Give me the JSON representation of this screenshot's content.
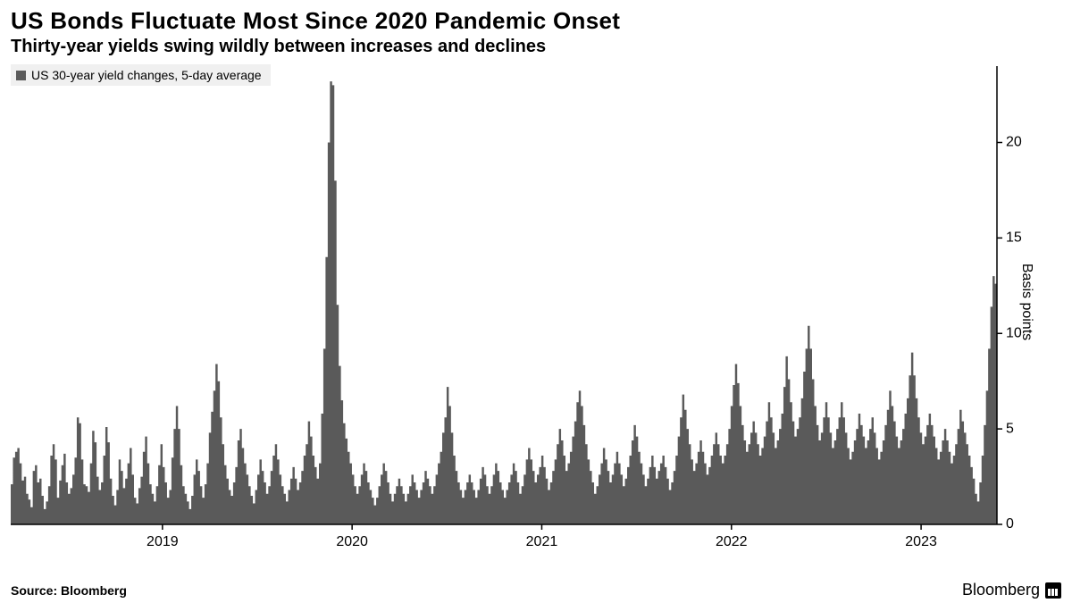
{
  "header": {
    "title": "US Bonds Fluctuate Most Since 2020 Pandemic Onset",
    "subtitle": "Thirty-year yields swing wildly between increases and declines"
  },
  "legend": {
    "swatch_color": "#5a5a5a",
    "label": "US 30-year yield changes, 5-day average"
  },
  "chart": {
    "type": "bar",
    "series_color": "#5a5a5a",
    "background_color": "#ffffff",
    "axis_color": "#000000",
    "tick_length": 6,
    "ylabel": "Basis points",
    "ylim": [
      0,
      24
    ],
    "yticks": [
      0,
      5,
      10,
      15,
      20
    ],
    "x_start_year": 2018.2,
    "x_end_year": 2023.4,
    "xticks": [
      2019,
      2020,
      2021,
      2022,
      2023
    ],
    "xtick_labels": [
      "2019",
      "2020",
      "2021",
      "2022",
      "2023"
    ],
    "values": [
      2.1,
      3.5,
      3.8,
      4.0,
      3.2,
      2.3,
      2.5,
      1.6,
      1.3,
      0.9,
      2.8,
      3.1,
      2.2,
      2.4,
      1.5,
      0.8,
      1.2,
      2.0,
      3.6,
      4.2,
      3.4,
      1.4,
      2.3,
      3.1,
      3.7,
      2.2,
      1.6,
      1.9,
      2.6,
      3.5,
      5.6,
      5.3,
      3.4,
      2.1,
      2.0,
      1.7,
      3.2,
      4.9,
      4.3,
      2.5,
      1.8,
      2.2,
      3.6,
      5.1,
      4.3,
      2.4,
      1.5,
      1.0,
      1.8,
      3.4,
      2.8,
      1.9,
      2.4,
      3.2,
      4.0,
      2.6,
      1.4,
      1.1,
      1.9,
      2.5,
      3.8,
      4.6,
      3.2,
      2.1,
      1.6,
      1.2,
      2.0,
      3.1,
      4.2,
      3.0,
      2.2,
      1.4,
      1.8,
      3.5,
      5.0,
      6.2,
      5.0,
      3.1,
      2.0,
      1.6,
      1.2,
      0.8,
      1.5,
      2.6,
      3.4,
      2.8,
      2.0,
      1.4,
      2.1,
      3.2,
      4.8,
      5.9,
      7.0,
      8.4,
      7.5,
      5.6,
      4.2,
      3.1,
      2.4,
      1.8,
      1.5,
      2.2,
      3.0,
      4.4,
      5.0,
      4.0,
      3.2,
      2.6,
      2.0,
      1.5,
      1.1,
      1.8,
      2.6,
      3.4,
      2.8,
      2.2,
      1.6,
      2.0,
      2.8,
      3.6,
      4.2,
      3.4,
      2.6,
      2.0,
      1.6,
      1.2,
      1.8,
      2.4,
      3.0,
      2.4,
      1.8,
      2.2,
      2.8,
      3.6,
      4.2,
      5.4,
      4.6,
      3.6,
      3.0,
      2.4,
      3.2,
      5.8,
      9.2,
      14.0,
      20.0,
      23.2,
      23.0,
      18.0,
      11.5,
      8.3,
      6.5,
      5.3,
      4.5,
      3.8,
      3.2,
      2.6,
      2.0,
      1.6,
      2.0,
      2.6,
      3.2,
      2.8,
      2.2,
      1.8,
      1.4,
      1.0,
      1.4,
      2.0,
      2.6,
      3.2,
      2.8,
      2.2,
      1.6,
      1.2,
      1.6,
      2.0,
      2.4,
      2.0,
      1.6,
      1.2,
      1.6,
      2.0,
      2.6,
      2.2,
      1.8,
      1.4,
      1.8,
      2.2,
      2.8,
      2.4,
      2.0,
      1.6,
      2.0,
      2.6,
      3.2,
      3.8,
      4.8,
      5.6,
      7.2,
      6.2,
      4.8,
      3.6,
      2.8,
      2.2,
      1.8,
      1.4,
      1.8,
      2.2,
      2.6,
      2.2,
      1.8,
      1.4,
      1.8,
      2.4,
      3.0,
      2.6,
      2.0,
      1.6,
      2.0,
      2.6,
      3.2,
      2.8,
      2.2,
      1.8,
      1.4,
      1.8,
      2.2,
      2.6,
      3.2,
      2.8,
      2.2,
      1.6,
      2.0,
      2.6,
      3.4,
      4.0,
      3.4,
      2.8,
      2.2,
      2.6,
      3.0,
      3.6,
      3.0,
      2.4,
      1.8,
      2.2,
      2.8,
      3.4,
      4.2,
      5.0,
      4.4,
      3.6,
      2.8,
      3.2,
      3.8,
      4.6,
      5.4,
      6.4,
      7.0,
      6.2,
      5.2,
      4.2,
      3.4,
      2.8,
      2.2,
      1.6,
      2.0,
      2.6,
      3.2,
      4.0,
      3.4,
      2.8,
      2.2,
      2.6,
      3.2,
      3.8,
      3.2,
      2.6,
      2.0,
      2.4,
      3.0,
      3.6,
      4.4,
      5.2,
      4.6,
      3.8,
      3.2,
      2.6,
      2.0,
      2.4,
      3.0,
      3.6,
      3.0,
      2.4,
      2.8,
      3.2,
      3.6,
      3.0,
      2.4,
      1.8,
      2.2,
      2.8,
      3.6,
      4.6,
      5.6,
      6.8,
      6.0,
      5.0,
      4.2,
      3.4,
      2.8,
      3.2,
      3.8,
      4.4,
      3.8,
      3.2,
      2.6,
      3.0,
      3.6,
      4.2,
      4.8,
      4.2,
      3.6,
      3.2,
      3.6,
      4.2,
      5.0,
      6.2,
      7.3,
      8.4,
      7.4,
      6.2,
      5.2,
      4.4,
      3.8,
      4.2,
      4.8,
      5.4,
      4.8,
      4.2,
      3.6,
      4.0,
      4.6,
      5.4,
      6.4,
      5.6,
      4.8,
      4.0,
      4.4,
      5.0,
      5.8,
      7.2,
      8.8,
      7.6,
      6.4,
      5.4,
      4.6,
      5.0,
      5.6,
      6.6,
      8.0,
      9.2,
      10.4,
      9.2,
      7.6,
      6.2,
      5.2,
      4.4,
      4.8,
      5.6,
      6.4,
      5.6,
      4.8,
      4.0,
      4.4,
      5.0,
      5.6,
      6.4,
      5.6,
      4.8,
      4.0,
      3.4,
      3.8,
      4.4,
      5.0,
      5.8,
      5.2,
      4.6,
      4.0,
      4.4,
      5.0,
      5.6,
      4.8,
      4.0,
      3.4,
      3.8,
      4.4,
      5.2,
      6.0,
      7.0,
      6.2,
      5.4,
      4.6,
      4.0,
      4.4,
      5.0,
      5.8,
      6.6,
      7.8,
      9.0,
      7.8,
      6.6,
      5.6,
      4.8,
      4.2,
      4.6,
      5.2,
      5.8,
      5.2,
      4.6,
      4.0,
      3.4,
      3.8,
      4.4,
      5.0,
      4.4,
      3.8,
      3.2,
      3.6,
      4.2,
      5.0,
      6.0,
      5.4,
      4.8,
      4.2,
      3.6,
      3.0,
      2.4,
      1.6,
      1.2,
      2.2,
      3.6,
      5.2,
      7.0,
      9.2,
      11.4,
      13.0,
      12.6
    ]
  },
  "footer": {
    "source": "Source: Bloomberg",
    "brand": "Bloomberg"
  },
  "fonts": {
    "title_size": 26,
    "subtitle_size": 20,
    "legend_size": 14,
    "tick_size": 16,
    "ylabel_size": 16,
    "footer_size": 14
  }
}
